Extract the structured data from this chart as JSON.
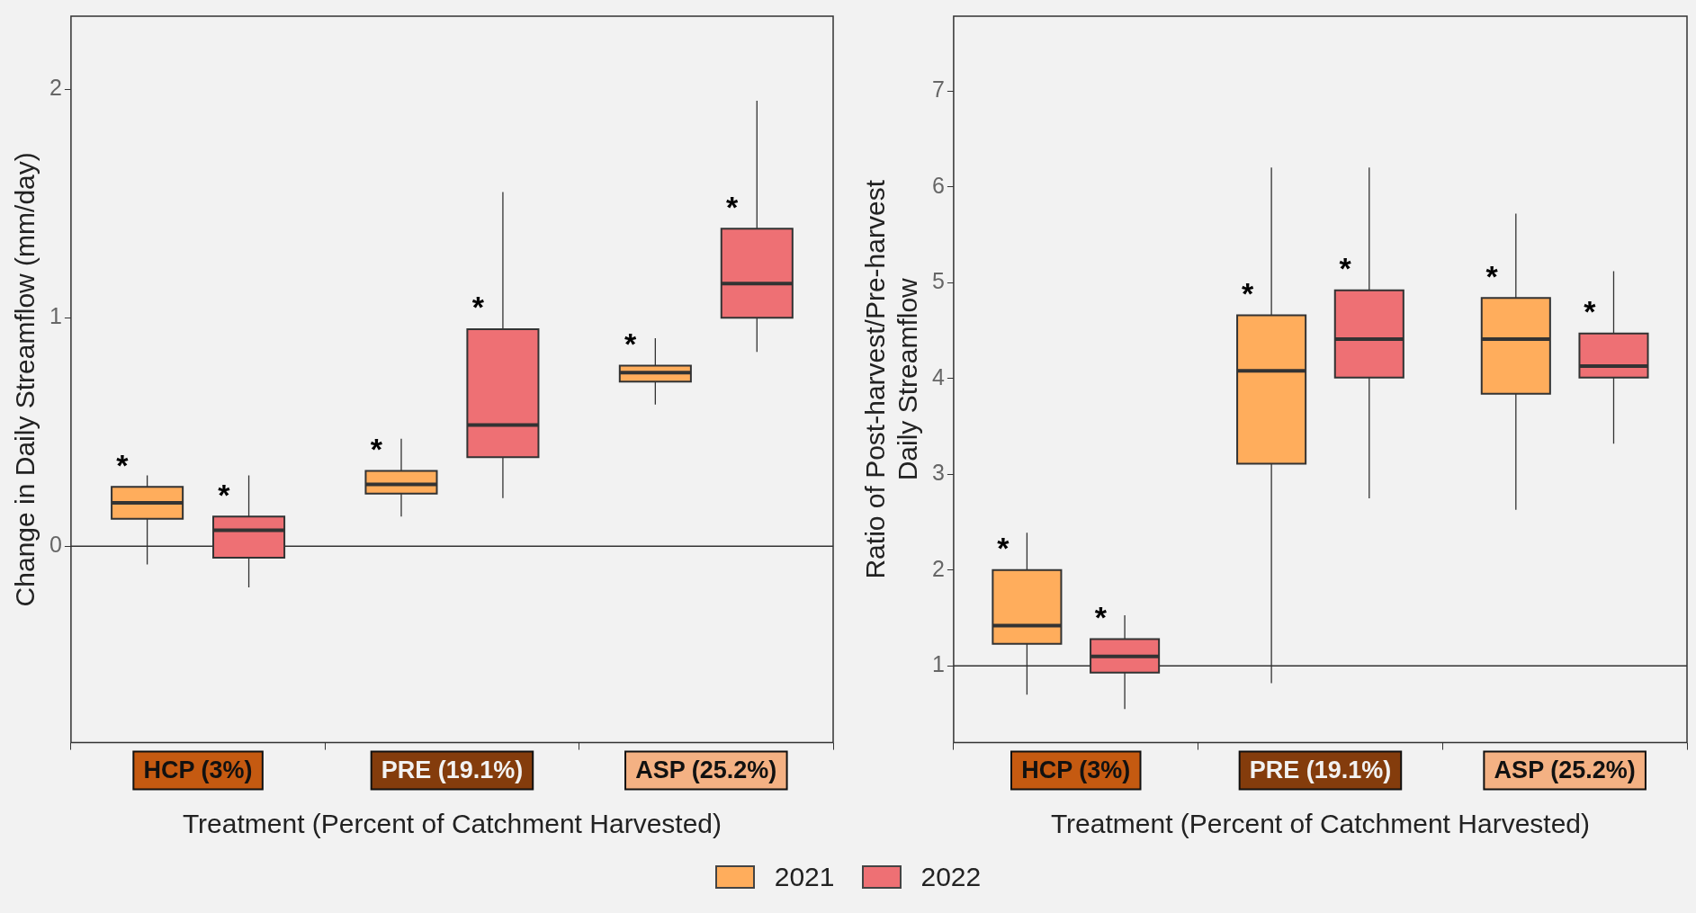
{
  "chart_data": [
    {
      "type": "box",
      "categories": [
        "HCP (3%)",
        "PRE (19.1%)",
        "ASP (25.2%)"
      ],
      "xlabel": "Treatment (Percent of Catchment Harvested)",
      "ylabel": "Change in Daily Streamflow (mm/day)",
      "ylim": [
        -0.86,
        2.32
      ],
      "yticks": [
        0,
        1,
        2
      ],
      "grid": false,
      "legend": "bottom",
      "series": [
        {
          "name": "2021",
          "color": "#ffad5c",
          "boxes": [
            {
              "low": -0.08,
              "q1": 0.12,
              "median": 0.19,
              "q3": 0.26,
              "high": 0.31
            },
            {
              "low": 0.13,
              "q1": 0.23,
              "median": 0.27,
              "q3": 0.33,
              "high": 0.47
            },
            {
              "low": 0.62,
              "q1": 0.72,
              "median": 0.76,
              "q3": 0.79,
              "high": 0.91
            }
          ]
        },
        {
          "name": "2022",
          "color": "#ee7074",
          "boxes": [
            {
              "low": -0.18,
              "q1": -0.05,
              "median": 0.07,
              "q3": 0.13,
              "high": 0.31
            },
            {
              "low": 0.21,
              "q1": 0.39,
              "median": 0.53,
              "q3": 0.95,
              "high": 1.55
            },
            {
              "low": 0.85,
              "q1": 1.0,
              "median": 1.15,
              "q3": 1.39,
              "high": 1.95
            }
          ]
        }
      ],
      "ref_lines": [
        {
          "axis": "y",
          "value": 0
        }
      ],
      "annotations": [
        "*",
        "*",
        "*",
        "*",
        "*",
        "*"
      ]
    },
    {
      "type": "box",
      "categories": [
        "HCP (3%)",
        "PRE (19.1%)",
        "ASP (25.2%)"
      ],
      "xlabel": "Treatment (Percent of Catchment Harvested)",
      "ylabel": "Ratio of Post-harvest/Pre-harvest\nDaily Streamflow",
      "ylim": [
        0.2,
        7.78
      ],
      "yticks": [
        1,
        2,
        3,
        4,
        5,
        6,
        7
      ],
      "grid": false,
      "series": [
        {
          "color": "#ffad5c",
          "boxes": [
            {
              "low": 0.7,
              "q1": 1.23,
              "median": 1.42,
              "q3": 2.0,
              "high": 2.39
            },
            {
              "low": 0.82,
              "q1": 3.11,
              "median": 4.08,
              "q3": 4.66,
              "high": 6.2
            },
            {
              "low": 2.63,
              "q1": 3.84,
              "median": 4.41,
              "q3": 4.84,
              "high": 5.72
            }
          ]
        },
        {
          "color": "#ee7074",
          "boxes": [
            {
              "low": 0.55,
              "q1": 0.93,
              "median": 1.1,
              "q3": 1.28,
              "high": 1.53
            },
            {
              "low": 2.75,
              "q1": 4.01,
              "median": 4.41,
              "q3": 4.92,
              "high": 6.2
            },
            {
              "low": 3.32,
              "q1": 4.01,
              "median": 4.13,
              "q3": 4.47,
              "high": 5.12
            }
          ]
        }
      ],
      "ref_lines": [
        {
          "axis": "y",
          "value": 1
        }
      ],
      "annotations": [
        "*",
        "*",
        "*",
        "*",
        "*",
        "*"
      ]
    }
  ]
}
